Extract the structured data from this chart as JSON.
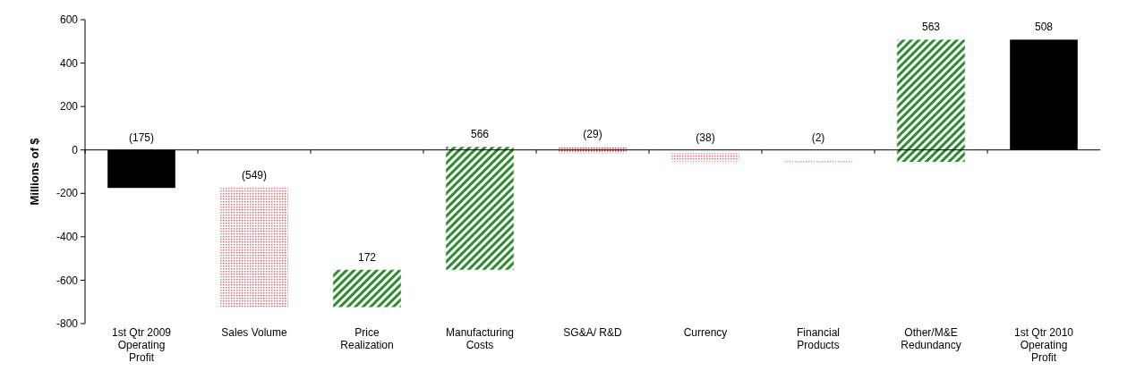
{
  "chart_data": {
    "type": "bar",
    "ylabel": "Millions of $",
    "categories": [
      "1st Qtr 2009 Operating Profit",
      "Sales Volume",
      "Price Realization",
      "Manufacturing Costs",
      "SG&A/ R&D",
      "Currency",
      "Financial Products",
      "Other/M&E Redundancy",
      "1st Qtr 2010 Operating Profit"
    ],
    "values": [
      -175,
      -549,
      172,
      566,
      -29,
      -38,
      -2,
      563,
      508
    ],
    "base": [
      0,
      -175,
      -724,
      -552,
      14,
      -15,
      -53,
      -55,
      0
    ],
    "colors": [
      "#000000",
      "#e07070",
      "#2e8b2e",
      "#2e8b2e",
      "#d03030",
      "#e07070",
      "#d03030",
      "#2e8b2e",
      "#000000"
    ],
    "value_labels": [
      "(175)",
      "(549)",
      "172",
      "566",
      "(29)",
      "(38)",
      "(2)",
      "563",
      "508"
    ],
    "ylim": [
      -800,
      600
    ],
    "yticks": [
      -800,
      -600,
      -400,
      -200,
      0,
      200,
      400,
      600
    ]
  }
}
